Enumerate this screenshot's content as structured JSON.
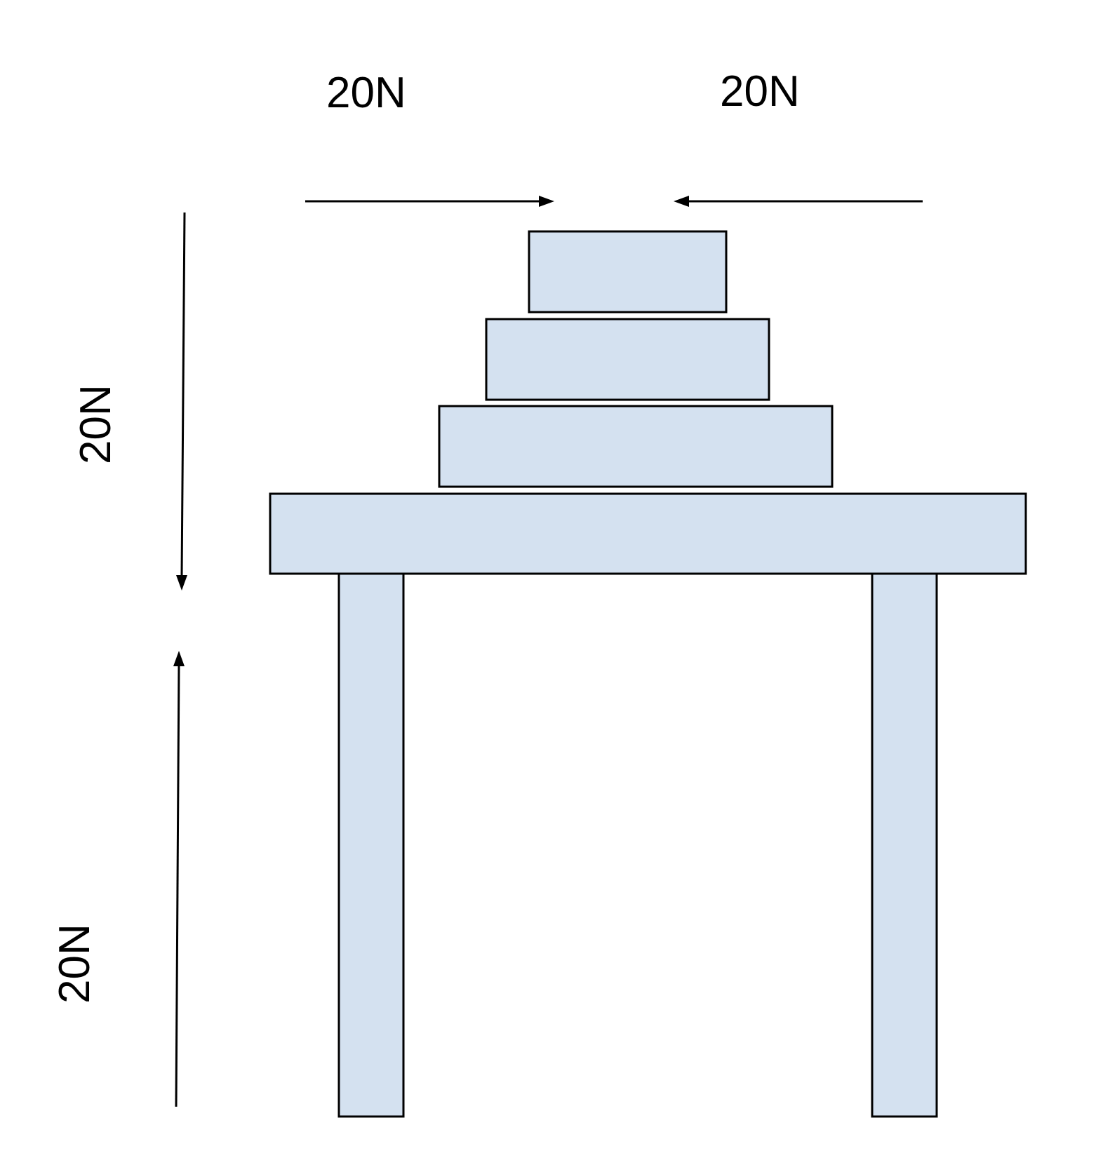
{
  "colors": {
    "object_fill": "#d4e1f0",
    "outline": "#000000",
    "background": "#ffffff"
  },
  "forces": {
    "top_left": {
      "label": "20N",
      "direction": "right"
    },
    "top_right": {
      "label": "20N",
      "direction": "left"
    },
    "left_upper": {
      "label": "20N",
      "direction": "down"
    },
    "left_lower": {
      "label": "20N",
      "direction": "up"
    }
  }
}
